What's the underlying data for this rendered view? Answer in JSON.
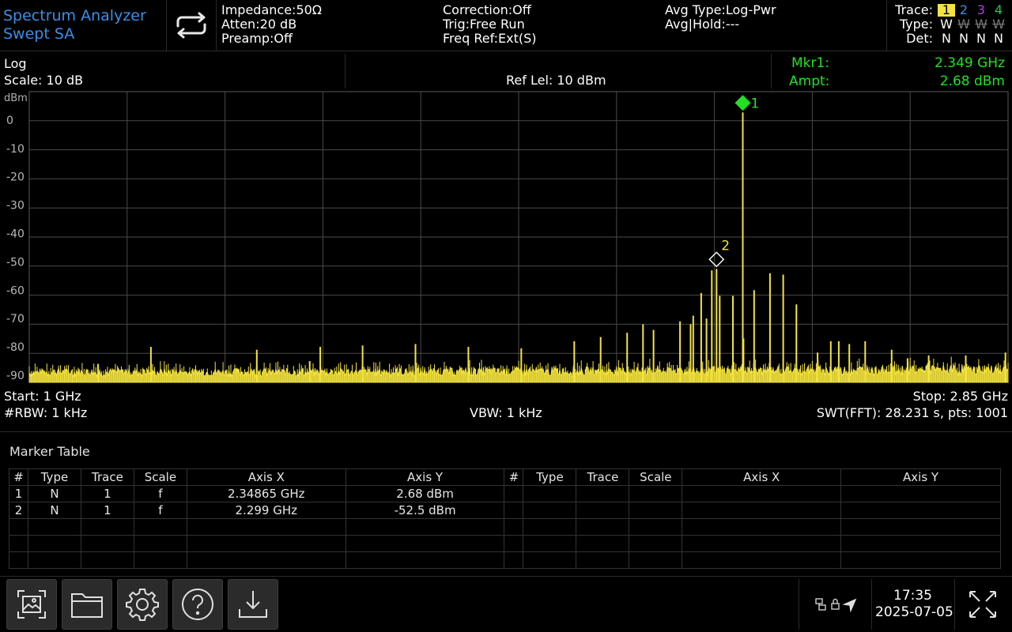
{
  "mode": {
    "title": "Spectrum Analyzer",
    "subtitle": "Swept SA"
  },
  "header": {
    "col1": [
      "Impedance:50Ω",
      "Atten:20 dB",
      "Preamp:Off"
    ],
    "col2": [
      "Correction:Off",
      "Trig:Free Run",
      "Freq Ref:Ext(S)"
    ],
    "col3": [
      "Avg Type:Log-Pwr",
      "Avg|Hold:---"
    ]
  },
  "trace_legend": {
    "trace_label": "Trace:",
    "type_label": "Type:",
    "det_label": "Det:",
    "traces": [
      "1",
      "2",
      "3",
      "4"
    ],
    "types": [
      "W",
      "W",
      "W",
      "W"
    ],
    "dets": [
      "N",
      "N",
      "N",
      "N"
    ],
    "colors": [
      "#f3e33f",
      "#3a8ee8",
      "#b040d8",
      "#22cc44"
    ]
  },
  "scale": {
    "mode": "Log",
    "scale": "Scale: 10 dB",
    "unit": "dBm",
    "ref_level": "Ref Lel: 10 dBm"
  },
  "marker_readout": {
    "mkr_label": "Mkr1:",
    "mkr_value": "2.349 GHz",
    "ampt_label": "Ampt:",
    "ampt_value": "2.68 dBm"
  },
  "footer": {
    "start": "Start: 1 GHz",
    "stop": "Stop: 2.85 GHz",
    "rbw": "#RBW: 1 kHz",
    "vbw": "VBW: 1 kHz",
    "swt": "SWT(FFT): 28.231 s, pts: 1001"
  },
  "chart_data": {
    "type": "line",
    "x_unit": "GHz",
    "y_unit": "dBm",
    "xlim": [
      1.0,
      2.85
    ],
    "ylim": [
      -92,
      10
    ],
    "y_ticks": [
      "0",
      "-10",
      "-20",
      "-30",
      "-40",
      "-50",
      "-60",
      "-70",
      "-80",
      "-90"
    ],
    "y_tick_values": [
      0,
      -10,
      -20,
      -30,
      -40,
      -50,
      -60,
      -70,
      -80,
      -90
    ],
    "noise_floor": -89,
    "trace_color": "#f3e33f",
    "peaks": [
      [
        1.13,
        -86
      ],
      [
        1.23,
        -80
      ],
      [
        1.43,
        -81
      ],
      [
        1.53,
        -85
      ],
      [
        1.55,
        -80
      ],
      [
        1.63,
        -79.5
      ],
      [
        1.73,
        -79
      ],
      [
        1.83,
        -80
      ],
      [
        1.93,
        -80.5
      ],
      [
        2.03,
        -78
      ],
      [
        2.08,
        -76.5
      ],
      [
        2.13,
        -75
      ],
      [
        2.16,
        -72
      ],
      [
        2.18,
        -74
      ],
      [
        2.23,
        -71
      ],
      [
        2.25,
        -72
      ],
      [
        2.255,
        -69
      ],
      [
        2.28,
        -70
      ],
      [
        2.27,
        -61
      ],
      [
        2.29,
        -53
      ],
      [
        2.299,
        -52.5
      ],
      [
        2.305,
        -62
      ],
      [
        2.33,
        -62
      ],
      [
        2.34865,
        2.68
      ],
      [
        2.35,
        -77
      ],
      [
        2.37,
        -60
      ],
      [
        2.4,
        -54
      ],
      [
        2.425,
        -54.5
      ],
      [
        2.45,
        -65
      ],
      [
        2.49,
        -82
      ],
      [
        2.515,
        -78
      ],
      [
        2.53,
        -78
      ],
      [
        2.55,
        -79
      ],
      [
        2.58,
        -78
      ],
      [
        2.63,
        -81
      ],
      [
        2.66,
        -84
      ],
      [
        2.7,
        -83
      ],
      [
        2.77,
        -83
      ],
      [
        2.845,
        -82
      ]
    ],
    "markers": [
      {
        "label": "1",
        "x": 2.34865,
        "y": 2.68,
        "active": true
      },
      {
        "label": "2",
        "x": 2.299,
        "y": -52.5,
        "active": false
      }
    ]
  },
  "marker_table": {
    "title": "Marker Table",
    "headers": [
      "#",
      "Type",
      "Trace",
      "Scale",
      "Axis X",
      "Axis Y",
      "#",
      "Type",
      "Trace",
      "Scale",
      "Axis X",
      "Axis Y"
    ],
    "rows": [
      [
        "1",
        "N",
        "1",
        "f",
        "2.34865 GHz",
        "2.68 dBm",
        "",
        "",
        "",
        "",
        "",
        ""
      ],
      [
        "2",
        "N",
        "1",
        "f",
        "2.299 GHz",
        "-52.5 dBm",
        "",
        "",
        "",
        "",
        "",
        ""
      ],
      [
        "",
        "",
        "",
        "",
        "",
        "",
        "",
        "",
        "",
        "",
        "",
        ""
      ],
      [
        "",
        "",
        "",
        "",
        "",
        "",
        "",
        "",
        "",
        "",
        "",
        ""
      ],
      [
        "",
        "",
        "",
        "",
        "",
        "",
        "",
        "",
        "",
        "",
        "",
        ""
      ]
    ]
  },
  "toolbar": {
    "buttons": [
      "screenshot-icon",
      "folder-icon",
      "gear-icon",
      "help-icon",
      "download-icon"
    ]
  },
  "status": {
    "time": "17:35",
    "date": "2025-07-05"
  }
}
